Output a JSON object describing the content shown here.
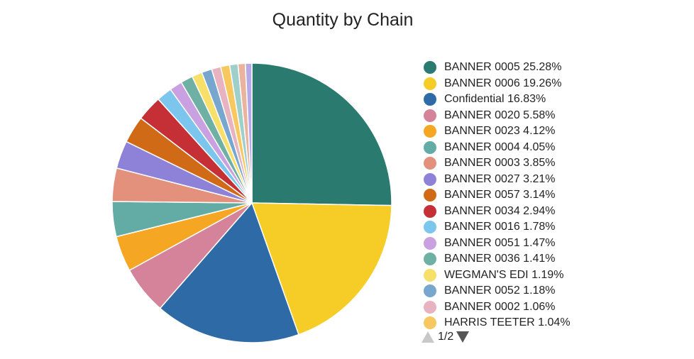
{
  "chart_data": {
    "type": "pie",
    "title": "Quantity by Chain",
    "legend_position": "right",
    "slices": [
      {
        "label": "BANNER 0005",
        "value": 25.28,
        "pct_text": "25.28%",
        "color": "#2a7a70"
      },
      {
        "label": "BANNER 0006",
        "value": 19.26,
        "pct_text": "19.26%",
        "color": "#f6cd27"
      },
      {
        "label": "Confidential",
        "value": 16.83,
        "pct_text": "16.83%",
        "color": "#2e6aa6"
      },
      {
        "label": "BANNER 0020",
        "value": 5.58,
        "pct_text": "5.58%",
        "color": "#d4839a"
      },
      {
        "label": "BANNER 0023",
        "value": 4.12,
        "pct_text": "4.12%",
        "color": "#f5a623"
      },
      {
        "label": "BANNER 0004",
        "value": 4.05,
        "pct_text": "4.05%",
        "color": "#63aca5"
      },
      {
        "label": "BANNER 0003",
        "value": 3.85,
        "pct_text": "3.85%",
        "color": "#e3907c"
      },
      {
        "label": "BANNER 0027",
        "value": 3.21,
        "pct_text": "3.21%",
        "color": "#8e82d8"
      },
      {
        "label": "BANNER 0057",
        "value": 3.14,
        "pct_text": "3.14%",
        "color": "#d06a16"
      },
      {
        "label": "BANNER 0034",
        "value": 2.94,
        "pct_text": "2.94%",
        "color": "#c53036"
      },
      {
        "label": "BANNER 0016",
        "value": 1.78,
        "pct_text": "1.78%",
        "color": "#7cc6ed"
      },
      {
        "label": "BANNER 0051",
        "value": 1.47,
        "pct_text": "1.47%",
        "color": "#c9a0e0"
      },
      {
        "label": "BANNER 0036",
        "value": 1.41,
        "pct_text": "1.41%",
        "color": "#6fb0a4"
      },
      {
        "label": "WEGMAN'S EDI",
        "value": 1.19,
        "pct_text": "1.19%",
        "color": "#f7e06a"
      },
      {
        "label": "BANNER 0052",
        "value": 1.18,
        "pct_text": "1.18%",
        "color": "#77a6cf"
      },
      {
        "label": "BANNER 0002",
        "value": 1.06,
        "pct_text": "1.06%",
        "color": "#e8b3c0"
      },
      {
        "label": "HARRIS TEETER",
        "value": 1.04,
        "pct_text": "1.04%",
        "color": "#f6c85f"
      },
      {
        "label": "",
        "value": 0.95,
        "pct_text": "",
        "color": "#9fcfcb"
      },
      {
        "label": "",
        "value": 0.85,
        "pct_text": "",
        "color": "#eab39e"
      },
      {
        "label": "",
        "value": 0.75,
        "pct_text": "",
        "color": "#b7a8e6"
      }
    ]
  },
  "pager": {
    "label": "1/2",
    "prev_color": "#c8c8c8",
    "next_color": "#555555"
  }
}
